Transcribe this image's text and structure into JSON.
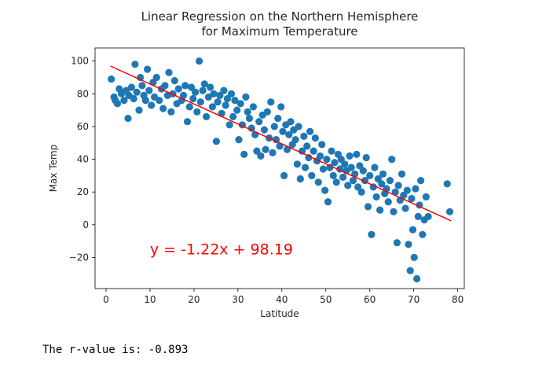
{
  "chart_data": {
    "type": "scatter",
    "title": "Linear Regression on the Northern Hemisphere\nfor Maximum Temperature",
    "xlabel": "Latitude",
    "ylabel": "Max Temp",
    "xlim": [
      -2.5,
      81.5
    ],
    "ylim": [
      -39,
      108
    ],
    "xticks": [
      0,
      10,
      20,
      30,
      40,
      50,
      60,
      70,
      80
    ],
    "yticks": [
      -20,
      0,
      20,
      40,
      60,
      80,
      100
    ],
    "xtick_labels": [
      "0",
      "10",
      "20",
      "30",
      "40",
      "50",
      "60",
      "70",
      "80"
    ],
    "ytick_labels": [
      "−20",
      "0",
      "20",
      "40",
      "60",
      "80",
      "100"
    ],
    "grid": false,
    "colors": {
      "points": "#1f77b4",
      "line": "#ff0000",
      "equation": "#ff0000"
    },
    "regression": {
      "slope": -1.22,
      "intercept": 98.19,
      "x_range": [
        1,
        78.5
      ],
      "equation_label": "y = -1.22x + 98.19",
      "equation_anchor": [
        10,
        -18
      ]
    },
    "points": [
      [
        1.2,
        89
      ],
      [
        1.8,
        78
      ],
      [
        2.1,
        76
      ],
      [
        2.6,
        74
      ],
      [
        3.0,
        83
      ],
      [
        3.5,
        80
      ],
      [
        4.1,
        76
      ],
      [
        4.6,
        82
      ],
      [
        5.0,
        65
      ],
      [
        5.2,
        79
      ],
      [
        5.8,
        84
      ],
      [
        6.3,
        77
      ],
      [
        6.6,
        98
      ],
      [
        7.0,
        81
      ],
      [
        7.5,
        70
      ],
      [
        7.8,
        90
      ],
      [
        8.2,
        85
      ],
      [
        8.6,
        79
      ],
      [
        9.0,
        76
      ],
      [
        9.4,
        95
      ],
      [
        9.8,
        82
      ],
      [
        10.3,
        73
      ],
      [
        10.7,
        87
      ],
      [
        11.0,
        78
      ],
      [
        11.5,
        90
      ],
      [
        12.1,
        76
      ],
      [
        12.6,
        83
      ],
      [
        13.0,
        71
      ],
      [
        13.4,
        85
      ],
      [
        14.0,
        79
      ],
      [
        14.3,
        93
      ],
      [
        14.8,
        69
      ],
      [
        15.2,
        80
      ],
      [
        15.6,
        88
      ],
      [
        16.1,
        74
      ],
      [
        16.5,
        83
      ],
      [
        17.2,
        76
      ],
      [
        17.6,
        79
      ],
      [
        18.0,
        85
      ],
      [
        18.5,
        63
      ],
      [
        19.0,
        72
      ],
      [
        19.4,
        84
      ],
      [
        19.8,
        77
      ],
      [
        20.3,
        81
      ],
      [
        20.7,
        69
      ],
      [
        21.2,
        100
      ],
      [
        21.5,
        75
      ],
      [
        22.0,
        82
      ],
      [
        22.4,
        86
      ],
      [
        22.8,
        66
      ],
      [
        23.3,
        78
      ],
      [
        23.7,
        84
      ],
      [
        24.2,
        72
      ],
      [
        24.5,
        80
      ],
      [
        25.1,
        51
      ],
      [
        25.4,
        75
      ],
      [
        25.9,
        79
      ],
      [
        26.3,
        68
      ],
      [
        26.8,
        82
      ],
      [
        27.2,
        73
      ],
      [
        27.6,
        77
      ],
      [
        28.1,
        61
      ],
      [
        28.5,
        80
      ],
      [
        28.9,
        66
      ],
      [
        29.3,
        76
      ],
      [
        29.8,
        70
      ],
      [
        30.2,
        52
      ],
      [
        30.6,
        74
      ],
      [
        31.0,
        61
      ],
      [
        31.4,
        43
      ],
      [
        31.8,
        78
      ],
      [
        32.2,
        69
      ],
      [
        32.6,
        65
      ],
      [
        33.1,
        59
      ],
      [
        33.5,
        72
      ],
      [
        33.9,
        55
      ],
      [
        34.3,
        45
      ],
      [
        34.8,
        63
      ],
      [
        35.2,
        42
      ],
      [
        35.6,
        67
      ],
      [
        36.0,
        58
      ],
      [
        36.3,
        46
      ],
      [
        36.7,
        69
      ],
      [
        37.1,
        53
      ],
      [
        37.5,
        75
      ],
      [
        37.9,
        44
      ],
      [
        38.3,
        60
      ],
      [
        38.7,
        52
      ],
      [
        39.1,
        65
      ],
      [
        39.5,
        48
      ],
      [
        39.8,
        72
      ],
      [
        40.2,
        57
      ],
      [
        40.5,
        30
      ],
      [
        40.9,
        61
      ],
      [
        41.2,
        46
      ],
      [
        41.6,
        55
      ],
      [
        42.0,
        63
      ],
      [
        42.4,
        49
      ],
      [
        42.7,
        58
      ],
      [
        43.1,
        52
      ],
      [
        43.5,
        37
      ],
      [
        43.8,
        60
      ],
      [
        44.2,
        28
      ],
      [
        44.6,
        45
      ],
      [
        45.0,
        54
      ],
      [
        45.3,
        35
      ],
      [
        45.7,
        48
      ],
      [
        46.1,
        41
      ],
      [
        46.4,
        57
      ],
      [
        46.8,
        30
      ],
      [
        47.2,
        45
      ],
      [
        47.6,
        53
      ],
      [
        48.0,
        39
      ],
      [
        48.3,
        26
      ],
      [
        48.7,
        42
      ],
      [
        49.1,
        49
      ],
      [
        49.4,
        34
      ],
      [
        49.8,
        21
      ],
      [
        50.2,
        40
      ],
      [
        50.5,
        14
      ],
      [
        50.9,
        35
      ],
      [
        51.3,
        45
      ],
      [
        51.7,
        30
      ],
      [
        52.0,
        38
      ],
      [
        52.4,
        26
      ],
      [
        52.8,
        43
      ],
      [
        53.2,
        34
      ],
      [
        53.5,
        40
      ],
      [
        53.9,
        29
      ],
      [
        54.3,
        37
      ],
      [
        54.7,
        33
      ],
      [
        55.0,
        24
      ],
      [
        55.4,
        42
      ],
      [
        55.8,
        35
      ],
      [
        56.2,
        27
      ],
      [
        56.6,
        31
      ],
      [
        57.0,
        43
      ],
      [
        57.3,
        23
      ],
      [
        57.7,
        36
      ],
      [
        58.1,
        20
      ],
      [
        58.5,
        33
      ],
      [
        58.9,
        27
      ],
      [
        59.2,
        41
      ],
      [
        59.6,
        11
      ],
      [
        60.0,
        30
      ],
      [
        60.4,
        -6
      ],
      [
        60.8,
        23
      ],
      [
        61.1,
        35
      ],
      [
        61.5,
        17
      ],
      [
        61.9,
        28
      ],
      [
        62.3,
        9
      ],
      [
        62.7,
        25
      ],
      [
        63.0,
        31
      ],
      [
        63.4,
        19
      ],
      [
        63.8,
        22
      ],
      [
        64.2,
        14
      ],
      [
        64.6,
        27
      ],
      [
        65.0,
        40
      ],
      [
        65.4,
        8
      ],
      [
        65.8,
        20
      ],
      [
        66.2,
        -11
      ],
      [
        66.5,
        24
      ],
      [
        66.9,
        15
      ],
      [
        67.3,
        31
      ],
      [
        67.7,
        18
      ],
      [
        68.1,
        10
      ],
      [
        68.5,
        21
      ],
      [
        68.8,
        -12
      ],
      [
        69.2,
        -28
      ],
      [
        69.5,
        16
      ],
      [
        69.8,
        -3
      ],
      [
        70.1,
        -20
      ],
      [
        70.4,
        22
      ],
      [
        70.7,
        -33
      ],
      [
        71.0,
        5
      ],
      [
        71.3,
        12
      ],
      [
        71.6,
        27
      ],
      [
        72.0,
        -6
      ],
      [
        72.4,
        3
      ],
      [
        72.8,
        17
      ],
      [
        73.3,
        5
      ],
      [
        77.6,
        25
      ],
      [
        78.2,
        8
      ]
    ]
  },
  "output": {
    "r_value_text": "The r-value is: -0.893"
  }
}
